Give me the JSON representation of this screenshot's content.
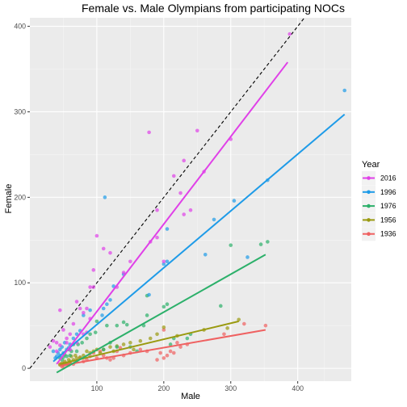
{
  "chart_data": {
    "type": "scatter",
    "title": "Female vs. Male Olympians from participating NOCs",
    "xlabel": "Male",
    "ylabel": "Female",
    "xlim": [
      0,
      480
    ],
    "ylim": [
      -15,
      410
    ],
    "x_ticks": [
      100,
      200,
      300,
      400
    ],
    "y_ticks": [
      0,
      100,
      200,
      300,
      400
    ],
    "grid": true,
    "legend_title": "Year",
    "legend_position": "right",
    "reference_line": {
      "label": "y = x",
      "style": "dashed",
      "color": "#000000"
    },
    "series": [
      {
        "name": "2016",
        "color": "#E040E8",
        "fit": {
          "x": [
            40,
            385
          ],
          "y": [
            5,
            358
          ]
        },
        "points": [
          [
            388,
            391
          ],
          [
            300,
            268
          ],
          [
            250,
            278
          ],
          [
            178,
            276
          ],
          [
            230,
            243
          ],
          [
            215,
            225
          ],
          [
            260,
            230
          ],
          [
            225,
            205
          ],
          [
            240,
            185
          ],
          [
            230,
            180
          ],
          [
            190,
            185
          ],
          [
            190,
            153
          ],
          [
            180,
            148
          ],
          [
            200,
            125
          ],
          [
            150,
            125
          ],
          [
            140,
            112
          ],
          [
            130,
            95
          ],
          [
            120,
            135
          ],
          [
            110,
            140
          ],
          [
            100,
            155
          ],
          [
            95,
            115
          ],
          [
            95,
            95
          ],
          [
            90,
            95
          ],
          [
            85,
            70
          ],
          [
            80,
            65
          ],
          [
            75,
            70
          ],
          [
            70,
            78
          ],
          [
            65,
            52
          ],
          [
            60,
            40
          ],
          [
            55,
            35
          ],
          [
            50,
            45
          ],
          [
            45,
            68
          ],
          [
            45,
            27
          ],
          [
            40,
            20
          ],
          [
            40,
            30
          ],
          [
            35,
            32
          ],
          [
            30,
            25
          ],
          [
            60,
            22
          ],
          [
            55,
            30
          ],
          [
            70,
            30
          ],
          [
            80,
            40
          ],
          [
            85,
            42
          ],
          [
            90,
            58
          ]
        ]
      },
      {
        "name": "1996",
        "color": "#1E9BE8",
        "fit": {
          "x": [
            35,
            470
          ],
          "y": [
            8,
            297
          ]
        },
        "points": [
          [
            470,
            325
          ],
          [
            355,
            220
          ],
          [
            305,
            196
          ],
          [
            325,
            130
          ],
          [
            275,
            174
          ],
          [
            262,
            133
          ],
          [
            205,
            163
          ],
          [
            205,
            125
          ],
          [
            200,
            122
          ],
          [
            178,
            86
          ],
          [
            140,
            110
          ],
          [
            125,
            96
          ],
          [
            120,
            80
          ],
          [
            115,
            75
          ],
          [
            112,
            200
          ],
          [
            110,
            70
          ],
          [
            108,
            62
          ],
          [
            90,
            68
          ],
          [
            80,
            62
          ],
          [
            75,
            44
          ],
          [
            70,
            40
          ],
          [
            60,
            28
          ],
          [
            55,
            22
          ],
          [
            50,
            18
          ],
          [
            48,
            25
          ],
          [
            45,
            15
          ],
          [
            42,
            18
          ],
          [
            40,
            14
          ],
          [
            38,
            12
          ],
          [
            52,
            30
          ],
          [
            58,
            24
          ],
          [
            65,
            35
          ],
          [
            35,
            20
          ],
          [
            45,
            22
          ]
        ]
      },
      {
        "name": "1976",
        "color": "#2CB06A",
        "fit": {
          "x": [
            40,
            352
          ],
          "y": [
            -5,
            133
          ]
        },
        "points": [
          [
            355,
            148
          ],
          [
            345,
            145
          ],
          [
            300,
            144
          ],
          [
            285,
            73
          ],
          [
            205,
            75
          ],
          [
            175,
            85
          ],
          [
            200,
            72
          ],
          [
            175,
            62
          ],
          [
            170,
            50
          ],
          [
            145,
            51
          ],
          [
            140,
            54
          ],
          [
            130,
            50
          ],
          [
            115,
            50
          ],
          [
            100,
            55
          ],
          [
            98,
            42
          ],
          [
            90,
            40
          ],
          [
            85,
            35
          ],
          [
            78,
            30
          ],
          [
            72,
            28
          ],
          [
            65,
            28
          ],
          [
            62,
            20
          ],
          [
            58,
            22
          ],
          [
            55,
            14
          ],
          [
            52,
            16
          ],
          [
            50,
            13
          ],
          [
            48,
            10
          ],
          [
            45,
            12
          ],
          [
            110,
            22
          ],
          [
            120,
            30
          ],
          [
            130,
            25
          ],
          [
            150,
            25
          ],
          [
            160,
            20
          ],
          [
            215,
            35
          ],
          [
            210,
            28
          ],
          [
            240,
            40
          ],
          [
            235,
            35
          ],
          [
            60,
            15
          ],
          [
            70,
            20
          ]
        ]
      },
      {
        "name": "1956",
        "color": "#9A9A10",
        "fit": {
          "x": [
            45,
            312
          ],
          "y": [
            5,
            55
          ]
        },
        "points": [
          [
            312,
            57
          ],
          [
            295,
            47
          ],
          [
            260,
            45
          ],
          [
            200,
            48
          ],
          [
            190,
            40
          ],
          [
            180,
            35
          ],
          [
            165,
            32
          ],
          [
            150,
            30
          ],
          [
            140,
            28
          ],
          [
            130,
            26
          ],
          [
            120,
            25
          ],
          [
            110,
            22
          ],
          [
            100,
            22
          ],
          [
            90,
            18
          ],
          [
            80,
            15
          ],
          [
            75,
            13
          ],
          [
            70,
            12
          ],
          [
            65,
            10
          ],
          [
            60,
            8
          ],
          [
            55,
            6
          ],
          [
            50,
            5
          ],
          [
            45,
            4
          ],
          [
            48,
            6
          ],
          [
            52,
            8
          ],
          [
            58,
            10
          ],
          [
            62,
            14
          ],
          [
            68,
            15
          ],
          [
            85,
            20
          ],
          [
            95,
            20
          ],
          [
            105,
            18
          ],
          [
            125,
            20
          ],
          [
            155,
            22
          ],
          [
            220,
            38
          ]
        ]
      },
      {
        "name": "1936",
        "color": "#EF6161",
        "fit": {
          "x": [
            45,
            352
          ],
          "y": [
            3,
            45
          ]
        },
        "points": [
          [
            352,
            50
          ],
          [
            320,
            52
          ],
          [
            290,
            40
          ],
          [
            235,
            28
          ],
          [
            225,
            25
          ],
          [
            220,
            30
          ],
          [
            215,
            18
          ],
          [
            210,
            20
          ],
          [
            205,
            15
          ],
          [
            200,
            12
          ],
          [
            195,
            18
          ],
          [
            190,
            10
          ],
          [
            175,
            20
          ],
          [
            165,
            22
          ],
          [
            150,
            18
          ],
          [
            140,
            15
          ],
          [
            130,
            20
          ],
          [
            125,
            12
          ],
          [
            120,
            10
          ],
          [
            110,
            15
          ],
          [
            100,
            12
          ],
          [
            95,
            18
          ],
          [
            90,
            14
          ],
          [
            85,
            10
          ],
          [
            80,
            8
          ],
          [
            75,
            12
          ],
          [
            70,
            8
          ],
          [
            65,
            5
          ],
          [
            60,
            6
          ],
          [
            55,
            4
          ],
          [
            50,
            3
          ],
          [
            45,
            5
          ],
          [
            48,
            2
          ],
          [
            52,
            6
          ],
          [
            58,
            4
          ],
          [
            105,
            20
          ],
          [
            115,
            12
          ],
          [
            135,
            24
          ],
          [
            200,
            45
          ]
        ]
      }
    ]
  }
}
